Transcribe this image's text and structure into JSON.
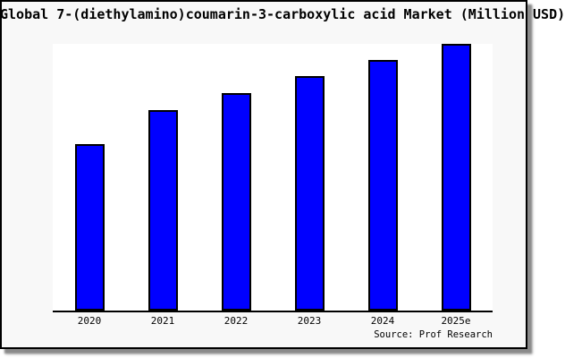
{
  "chart": {
    "title": "Global 7-(diethylamino)coumarin-3-carboxylic acid Market (Million USD)",
    "source": "Source: Prof Research"
  },
  "chart_data": {
    "type": "bar",
    "title": "Global 7-(diethylamino)coumarin-3-carboxylic acid Market (Million USD)",
    "categories": [
      "2020",
      "2021",
      "2022",
      "2023",
      "2024",
      "2025e"
    ],
    "values_pct_of_tallest_bar": [
      62.4,
      75.2,
      81.5,
      87.9,
      94.0,
      100.0
    ],
    "value_axis_note": "no y-axis ticks, gridlines, legend or data labels are shown; bar values estimated as percent of tallest (2025e) bar",
    "xlabel": "",
    "ylabel": "",
    "grid": false,
    "legend_position": "none",
    "bar_color": "#0000ff",
    "bar_border_color": "#000000",
    "annotations": [
      "Source: Prof Research"
    ]
  },
  "colors": {
    "frame_background": "#f8f8f8",
    "plot_background": "#ffffff",
    "bar_fill": "#0000ff",
    "bar_border": "#000000",
    "axis": "#000000",
    "frame_border": "#000000",
    "shadow": "#8a8a8a",
    "text": "#000000"
  }
}
